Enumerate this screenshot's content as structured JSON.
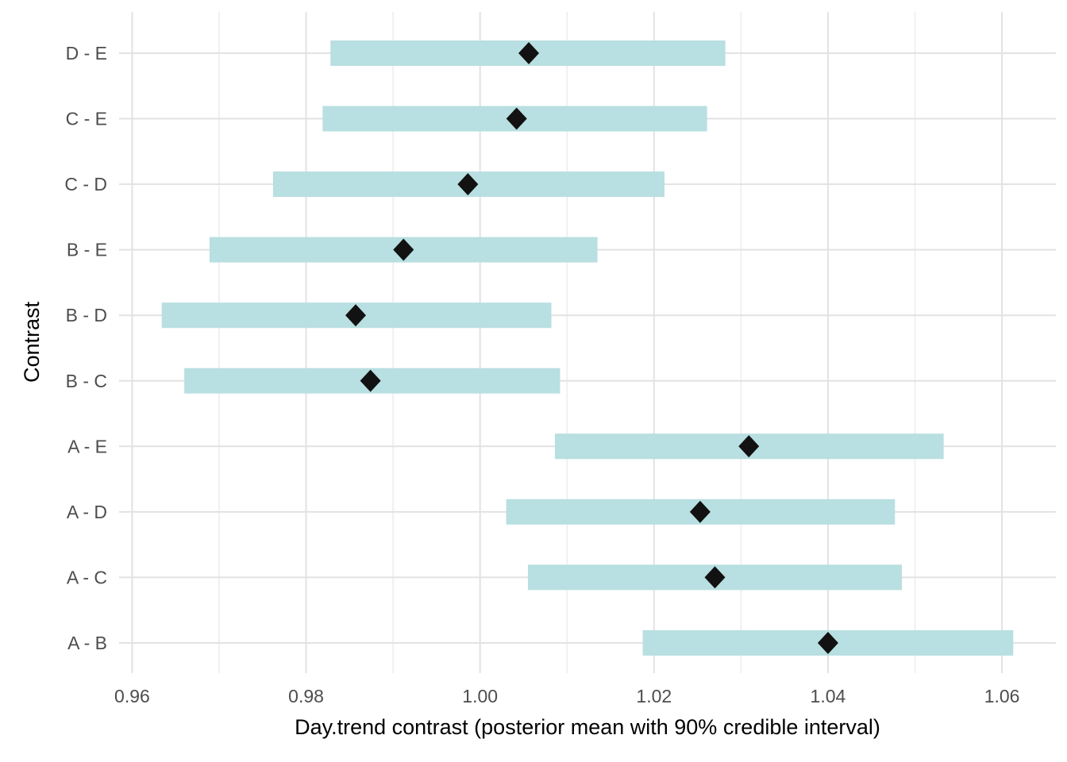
{
  "chart_data": {
    "type": "pointrange",
    "orientation": "horizontal",
    "title": "",
    "xlabel": "Day.trend contrast (posterior mean with 90% credible interval)",
    "ylabel": "Contrast",
    "interval_label": "90% credible interval",
    "categories": [
      "D - E",
      "C - E",
      "C - D",
      "B - E",
      "B - D",
      "B - C",
      "A - E",
      "A - D",
      "A - C",
      "A - B"
    ],
    "points": [
      {
        "contrast": "D - E",
        "lower": 0.9828,
        "mean": 1.0056,
        "upper": 1.0282
      },
      {
        "contrast": "C - E",
        "lower": 0.9819,
        "mean": 1.0042,
        "upper": 1.0261
      },
      {
        "contrast": "C - D",
        "lower": 0.9762,
        "mean": 0.9986,
        "upper": 1.0212
      },
      {
        "contrast": "B - E",
        "lower": 0.9689,
        "mean": 0.9912,
        "upper": 1.0135
      },
      {
        "contrast": "B - D",
        "lower": 0.9634,
        "mean": 0.9857,
        "upper": 1.0082
      },
      {
        "contrast": "B - C",
        "lower": 0.966,
        "mean": 0.9874,
        "upper": 1.0092
      },
      {
        "contrast": "A - E",
        "lower": 1.0086,
        "mean": 1.0309,
        "upper": 1.0533
      },
      {
        "contrast": "A - D",
        "lower": 1.003,
        "mean": 1.0253,
        "upper": 1.0477
      },
      {
        "contrast": "A - C",
        "lower": 1.0055,
        "mean": 1.027,
        "upper": 1.0485
      },
      {
        "contrast": "A - B",
        "lower": 1.0187,
        "mean": 1.04,
        "upper": 1.0613
      }
    ],
    "x_axis": {
      "tick_values": [
        0.96,
        0.98,
        1.0,
        1.02,
        1.04,
        1.06
      ],
      "tick_labels": [
        "0.96",
        "0.98",
        "1.00",
        "1.02",
        "1.04",
        "1.06"
      ],
      "minor_tick_values": [
        0.97,
        0.99,
        1.01,
        1.03,
        1.05
      ],
      "xlim": [
        0.9585,
        1.0662
      ]
    },
    "grid": true,
    "legend": "none",
    "colors": {
      "bar": "#B8DFE1",
      "point": "#121212",
      "grid_major": "#E2E2E2",
      "grid_minor": "#F0F0F0",
      "tick_text": "#4D4D4D",
      "title_text": "#000000",
      "background": "#FFFFFF"
    }
  }
}
